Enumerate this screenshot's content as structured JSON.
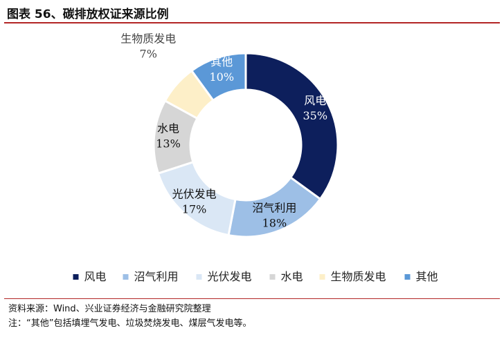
{
  "header": {
    "title": "图表 56、碳排放权证来源比例"
  },
  "chart_data": {
    "type": "pie",
    "variant": "donut",
    "title": "图表 56、碳排放权证来源比例",
    "slices": [
      {
        "name": "风电",
        "percent_label": "35%",
        "value": 35,
        "color": "#0d1f5c",
        "text_color": "#ffffff"
      },
      {
        "name": "沼气利用",
        "percent_label": "18%",
        "value": 18,
        "color": "#9dbfe6",
        "text_color": "#111111"
      },
      {
        "name": "光伏发电",
        "percent_label": "17%",
        "value": 17,
        "color": "#dae7f5",
        "text_color": "#111111"
      },
      {
        "name": "水电",
        "percent_label": "13%",
        "value": 13,
        "color": "#d6d6d6",
        "text_color": "#111111"
      },
      {
        "name": "生物质发电",
        "percent_label": "7%",
        "value": 7,
        "color": "#fdefc8",
        "text_color": "#444444"
      },
      {
        "name": "其他",
        "percent_label": "10%",
        "value": 10,
        "color": "#5b98d7",
        "text_color": "#ffffff"
      }
    ],
    "legend_position": "bottom"
  },
  "footer": {
    "source": "资料来源：Wind、兴业证券经济与金融研究院整理",
    "note": "注：“其他”包括填埋气发电、垃圾焚烧发电、煤层气发电等。"
  }
}
